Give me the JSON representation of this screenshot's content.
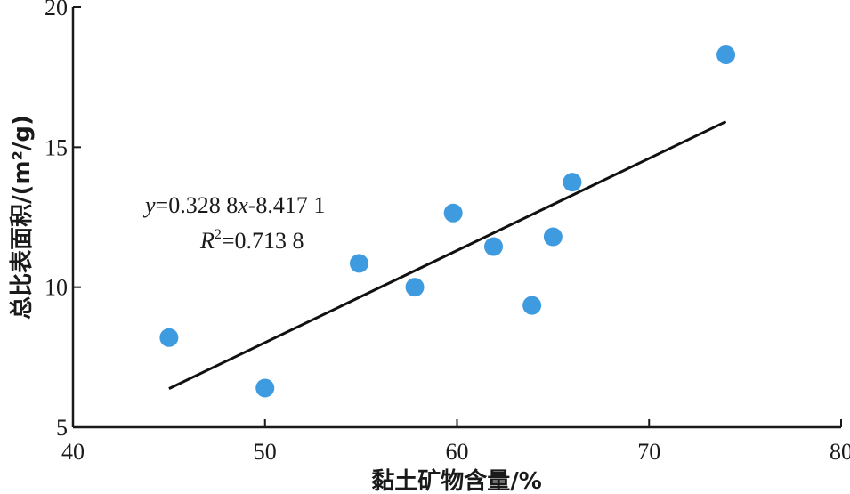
{
  "chart_data": {
    "type": "scatter",
    "xlabel": "黏土矿物含量/%",
    "ylabel": "总比表面积/(m²/g)",
    "xlim": [
      40,
      80
    ],
    "ylim": [
      5,
      20
    ],
    "xticks": [
      40,
      50,
      60,
      70,
      80
    ],
    "yticks": [
      5,
      10,
      15,
      20
    ],
    "grid": false,
    "colors": {
      "points": "#3f9be0",
      "line": "#111111",
      "axis": "#1a1a1a"
    },
    "series": [
      {
        "x": [
          45.0,
          50.0,
          54.9,
          57.8,
          59.8,
          61.9,
          63.9,
          65.0,
          66.0,
          74.0
        ],
        "y": [
          8.2,
          6.4,
          10.85,
          10.0,
          12.65,
          11.45,
          9.35,
          11.8,
          13.75,
          18.3
        ]
      }
    ],
    "trendline": {
      "slope": 0.3288,
      "intercept": -8.4171,
      "x_range": [
        45.0,
        74.0
      ]
    },
    "annotations": {
      "equation": {
        "y_var": "y",
        "eq_mid": "=0.328 8",
        "x_var": "x",
        "eq_end": "-8.417 1"
      },
      "r2": {
        "r_var": "R",
        "sup": "2",
        "value": "=0.713 8"
      }
    }
  }
}
